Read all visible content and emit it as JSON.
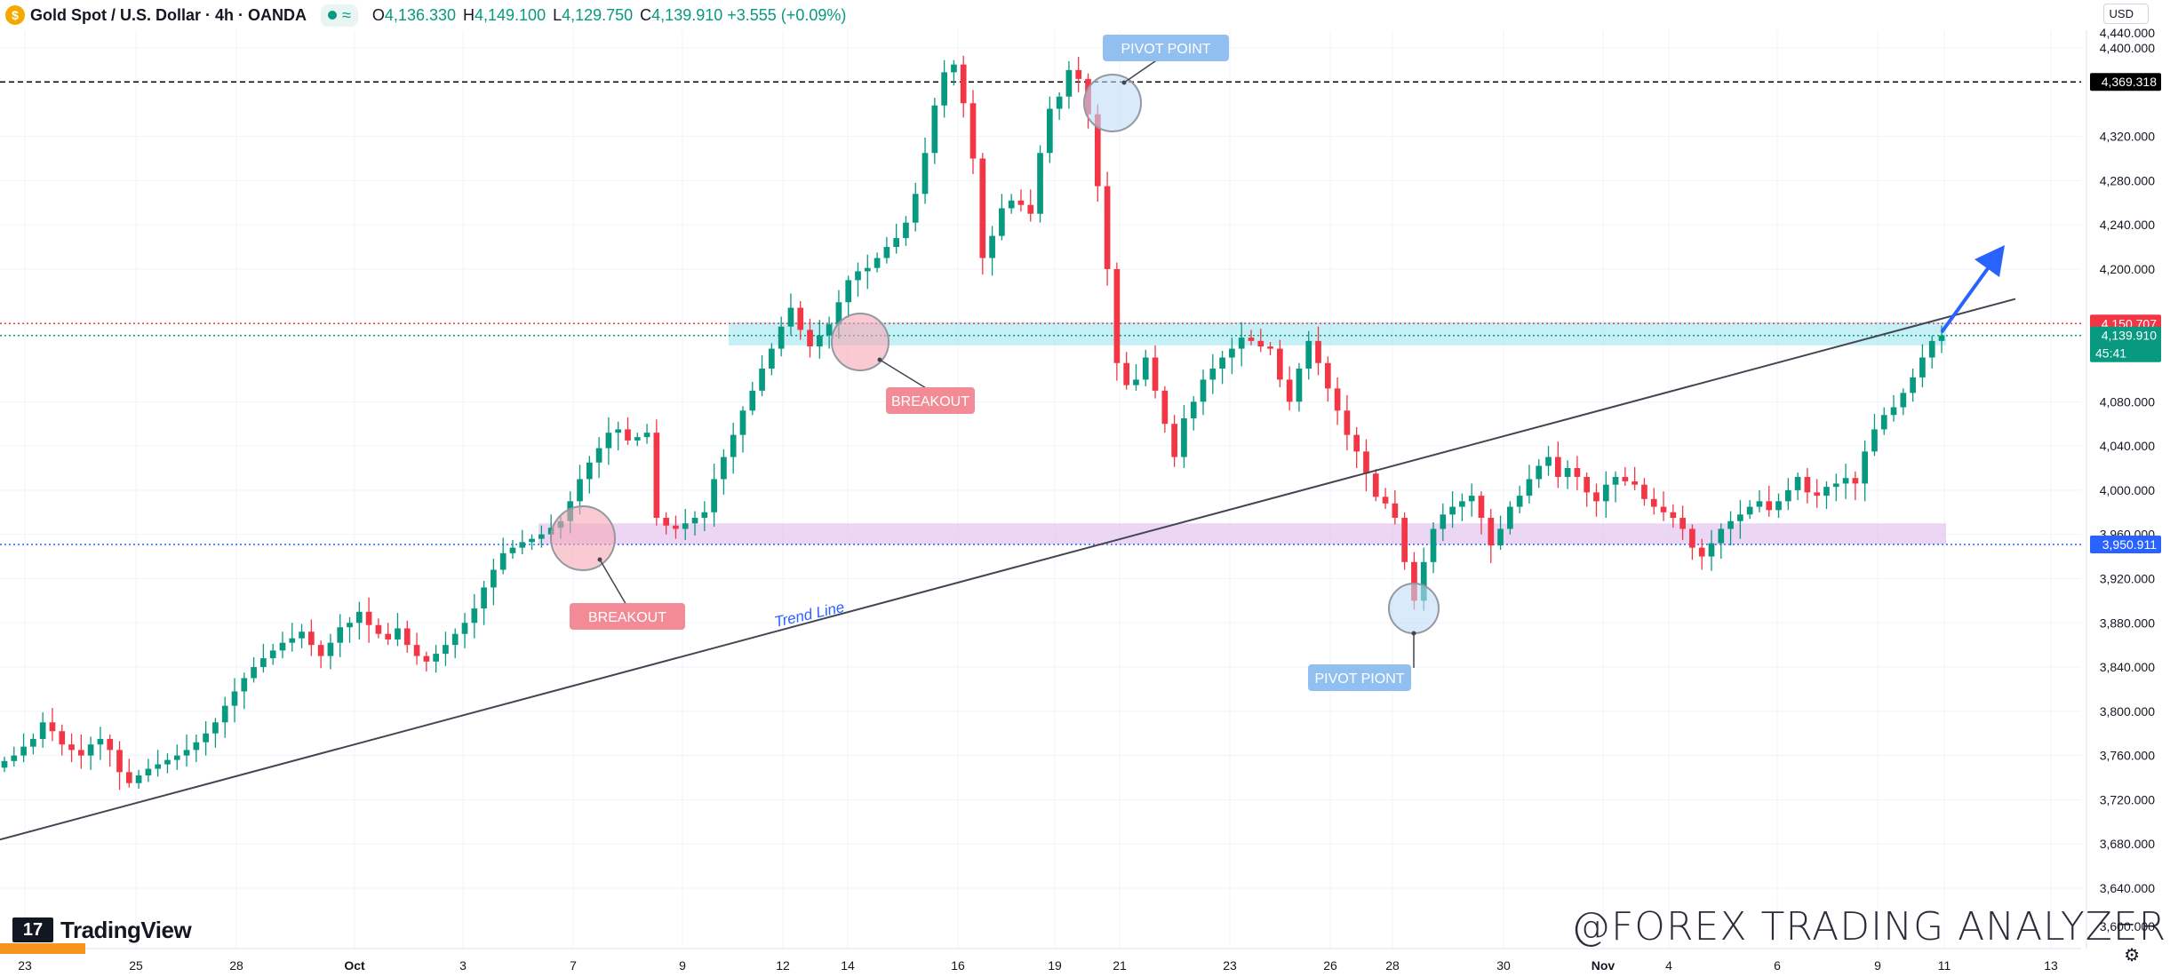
{
  "header": {
    "title": "Gold Spot / U.S. Dollar · 4h · OANDA",
    "symbol_icon": "gold-coin-icon",
    "compare_icon": "≈",
    "ohlc": [
      {
        "key": "O",
        "value": "4,136.330"
      },
      {
        "key": "H",
        "value": "4,149.100"
      },
      {
        "key": "L",
        "value": "4,129.750"
      },
      {
        "key": "C",
        "value": "4,139.910 +3.555 (+0.09%)"
      }
    ]
  },
  "currency": "USD",
  "branding": {
    "logo_mark": "17",
    "logo_text": "TradingView"
  },
  "watermark": "@FOREX TRADING ANALYZERII",
  "chart_data": {
    "type": "candlestick",
    "instrument": "Gold Spot / U.S. Dollar",
    "timeframe": "4h",
    "y_axis": {
      "min": 3620,
      "max": 4430,
      "ticks": [
        3640,
        3680,
        3720,
        3760,
        3800,
        3840,
        3880,
        3920,
        3960,
        4000,
        4040,
        4080,
        4200,
        4240,
        4280,
        4320,
        4400
      ],
      "tick_labels": [
        "3,640.000",
        "3,680.000",
        "3,720.000",
        "3,760.000",
        "3,800.000",
        "3,840.000",
        "3,880.000",
        "3,920.000",
        "3,960.000",
        "4,000.000",
        "4,040.000",
        "4,080.000",
        "4,200.000",
        "4,240.000",
        "4,280.000",
        "4,320.000",
        "4,400.000"
      ],
      "partial_top_label": "4,440.000",
      "partial_bottom_label": "3,600.000"
    },
    "x_axis": {
      "labels": [
        "23",
        "25",
        "28",
        "Oct",
        "3",
        "7",
        "9",
        "12",
        "14",
        "16",
        "19",
        "21",
        "23",
        "26",
        "28",
        "30",
        "Nov",
        "4",
        "6",
        "9",
        "11",
        "13"
      ],
      "bold": [
        "Oct",
        "Nov"
      ]
    },
    "price_labels": [
      {
        "value": 4369.318,
        "text": "4,369.318",
        "color": "#000000"
      },
      {
        "value": 4150.707,
        "text": "4,150.707",
        "color": "#f23645"
      },
      {
        "value": 4139.91,
        "text": "4,139.910",
        "countdown": "45:41",
        "color": "#089981"
      },
      {
        "value": 3950.911,
        "text": "3,950.911",
        "color": "#2962ff"
      }
    ],
    "horizontal_lines": [
      {
        "value": 4369.318,
        "style": "dashed",
        "color": "#000000"
      },
      {
        "value": 4150.707,
        "style": "dotted",
        "color": "#f23645"
      },
      {
        "value": 4139.91,
        "style": "dotted",
        "color": "#089981"
      },
      {
        "value": 3950.911,
        "style": "dotted",
        "color": "#2962ff"
      }
    ],
    "zones": [
      {
        "name": "resistance-support-zone",
        "from": 4131,
        "to": 4152,
        "color": "#b2ebf2"
      },
      {
        "name": "support-zone",
        "from": 3951,
        "to": 3970,
        "color": "#e6c8f0"
      }
    ],
    "trend_line": {
      "label": "Trend Line",
      "from": {
        "x": "23",
        "value": 3684
      },
      "to": {
        "x": "13",
        "value": 4173
      }
    },
    "annotations": [
      {
        "text": "BREAKOUT",
        "kind": "breakout",
        "at": "7"
      },
      {
        "text": "BREAKOUT",
        "kind": "breakout",
        "at": "14"
      },
      {
        "text": "PIVOT  POINT",
        "kind": "pivot",
        "at": "21"
      },
      {
        "text": "PIVOT PIONT",
        "kind": "pivot",
        "at": "28"
      }
    ],
    "arrow": {
      "direction": "up",
      "color": "#2962ff"
    },
    "closes": [
      3755,
      3760,
      3768,
      3775,
      3790,
      3782,
      3770,
      3765,
      3760,
      3770,
      3775,
      3765,
      3745,
      3735,
      3742,
      3748,
      3752,
      3756,
      3760,
      3765,
      3772,
      3780,
      3790,
      3805,
      3818,
      3830,
      3840,
      3848,
      3855,
      3862,
      3866,
      3872,
      3860,
      3850,
      3862,
      3876,
      3880,
      3890,
      3878,
      3870,
      3865,
      3875,
      3860,
      3850,
      3845,
      3852,
      3860,
      3870,
      3880,
      3893,
      3912,
      3928,
      3943,
      3948,
      3953,
      3956,
      3960,
      3966,
      3972,
      3990,
      4010,
      4025,
      4038,
      4052,
      4055,
      4045,
      4048,
      4052,
      3975,
      3968,
      3965,
      3970,
      3975,
      3980,
      4010,
      4030,
      4050,
      4072,
      4090,
      4110,
      4128,
      4148,
      4165,
      4145,
      4130,
      4140,
      4150,
      4170,
      4190,
      4198,
      4201,
      4210,
      4220,
      4228,
      4242,
      4268,
      4305,
      4348,
      4378,
      4385,
      4350,
      4300,
      4210,
      4230,
      4255,
      4262,
      4258,
      4250,
      4305,
      4345,
      4356,
      4380,
      4372,
      4340,
      4275,
      4200,
      4115,
      4095,
      4100,
      4120,
      4090,
      4060,
      4030,
      4065,
      4080,
      4100,
      4110,
      4120,
      4128,
      4138,
      4135,
      4130,
      4128,
      4100,
      4080,
      4110,
      4135,
      4115,
      4092,
      4072,
      4050,
      4035,
      4015,
      3994,
      3988,
      3975,
      3935,
      3900,
      3935,
      3965,
      3978,
      3985,
      3990,
      3995,
      3975,
      3950,
      3965,
      3985,
      3995,
      4010,
      4022,
      4030,
      4012,
      4020,
      4012,
      3998,
      3990,
      4005,
      4012,
      4008,
      4005,
      3992,
      3985,
      3980,
      3975,
      3965,
      3948,
      3940,
      3952,
      3965,
      3972,
      3978,
      3985,
      3990,
      3982,
      3990,
      4000,
      4012,
      3998,
      3995,
      4003,
      4006,
      4011,
      4006,
      4035,
      4055,
      4068,
      4075,
      4088,
      4102,
      4120,
      4135,
      4140
    ]
  }
}
